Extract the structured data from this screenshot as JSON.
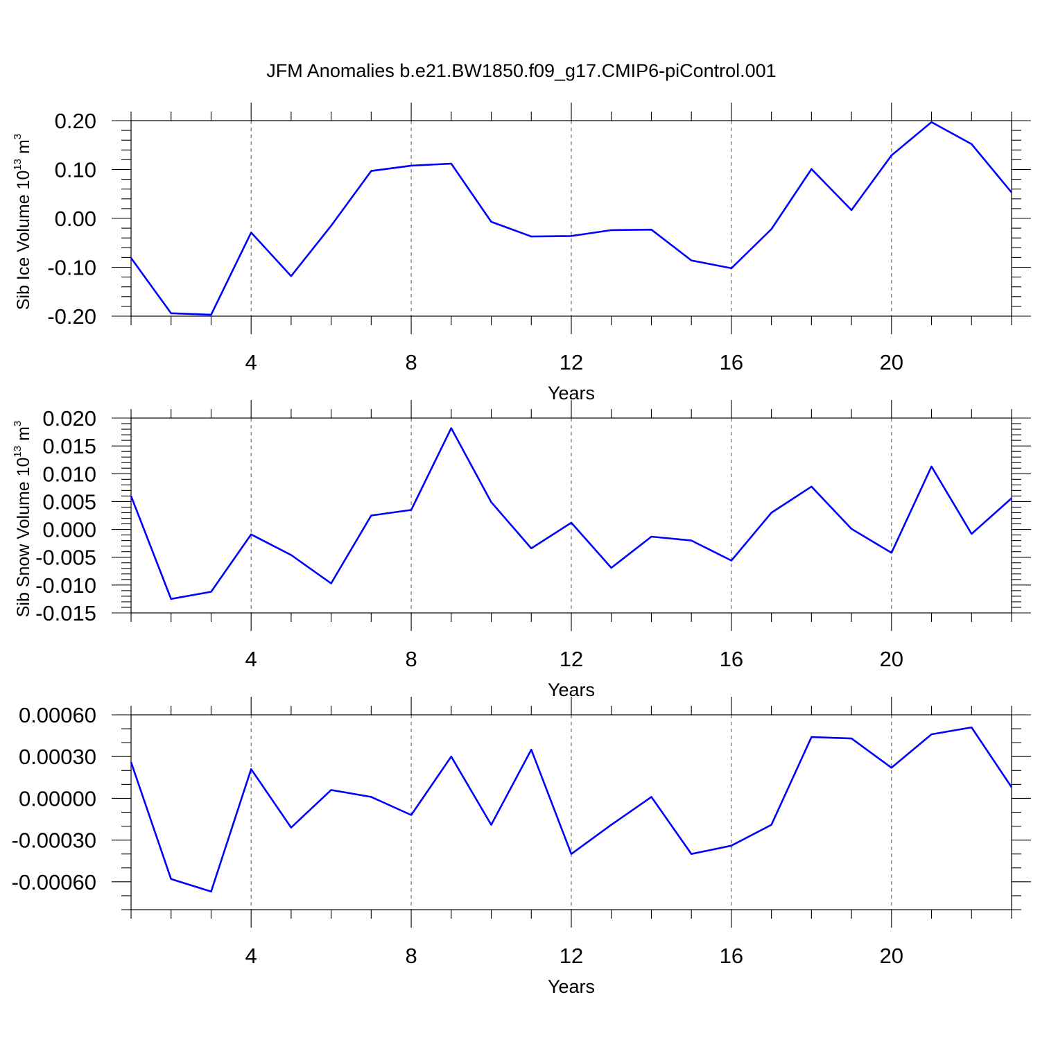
{
  "chart_data": [
    {
      "type": "line",
      "title": "JFM Anomalies b.e21.BW1850.f09_g17.CMIP6-piControl.001",
      "xlabel": "Years",
      "ylabel": "Sib Ice Volume 10",
      "ylabel_exp": "13",
      "ylabel_unit": " m",
      "ylabel_unit_exp": "3",
      "xlim": [
        1,
        23
      ],
      "ylim": [
        -0.2,
        0.2
      ],
      "xticks": [
        4,
        8,
        12,
        16,
        20
      ],
      "xtick_labels": [
        "4",
        "8",
        "12",
        "16",
        "20"
      ],
      "yticks": [
        -0.2,
        -0.1,
        0.0,
        0.1,
        0.2
      ],
      "ytick_labels": [
        "-0.20",
        "-0.10",
        "0.00",
        "0.10",
        "0.20"
      ],
      "y_minor_step": 0.02,
      "grid": "vertical dashed at major x ticks",
      "color": "#0000ff",
      "x": [
        1,
        2,
        3,
        4,
        5,
        6,
        7,
        8,
        9,
        10,
        11,
        12,
        13,
        14,
        15,
        16,
        17,
        18,
        19,
        20,
        21,
        22,
        23
      ],
      "values": [
        -0.081,
        -0.194,
        -0.197,
        -0.029,
        -0.118,
        -0.015,
        0.097,
        0.108,
        0.112,
        -0.007,
        -0.037,
        -0.036,
        -0.024,
        -0.023,
        -0.086,
        -0.102,
        -0.022,
        0.101,
        0.017,
        0.129,
        0.197,
        0.152,
        0.053
      ]
    },
    {
      "type": "line",
      "xlabel": "Years",
      "ylabel": "Sib Snow Volume 10",
      "ylabel_exp": "13",
      "ylabel_unit": " m",
      "ylabel_unit_exp": "3",
      "xlim": [
        1,
        23
      ],
      "ylim": [
        -0.015,
        0.02
      ],
      "xticks": [
        4,
        8,
        12,
        16,
        20
      ],
      "xtick_labels": [
        "4",
        "8",
        "12",
        "16",
        "20"
      ],
      "yticks": [
        -0.015,
        -0.01,
        -0.005,
        0.0,
        0.005,
        0.01,
        0.015,
        0.02
      ],
      "ytick_labels": [
        "-0.015",
        "-0.010",
        "-0.005",
        "0.000",
        "0.005",
        "0.010",
        "0.015",
        "0.020"
      ],
      "y_minor_step": 0.001,
      "grid": "vertical dashed at major x ticks",
      "color": "#0000ff",
      "x": [
        1,
        2,
        3,
        4,
        5,
        6,
        7,
        8,
        9,
        10,
        11,
        12,
        13,
        14,
        15,
        16,
        17,
        18,
        19,
        20,
        21,
        22,
        23
      ],
      "values": [
        0.006,
        -0.0125,
        -0.0112,
        -0.0009,
        -0.0046,
        -0.0097,
        0.0025,
        0.0035,
        0.0182,
        0.0049,
        -0.0034,
        0.0012,
        -0.0069,
        -0.0013,
        -0.002,
        -0.0056,
        0.003,
        0.0077,
        0.0001,
        -0.0042,
        0.0113,
        -0.0008,
        0.0056
      ]
    },
    {
      "type": "line",
      "xlabel": "Years",
      "ylabel": "",
      "xlim": [
        1,
        23
      ],
      "ylim": [
        -0.0008,
        0.0006
      ],
      "xticks": [
        4,
        8,
        12,
        16,
        20
      ],
      "xtick_labels": [
        "4",
        "8",
        "12",
        "16",
        "20"
      ],
      "yticks": [
        -0.0006,
        -0.0003,
        0.0,
        0.0003,
        0.0006
      ],
      "ytick_labels": [
        "-0.00060",
        "-0.00030",
        "0.00000",
        "0.00030",
        "0.00060"
      ],
      "y_minor_step": 0.0001,
      "grid": "vertical dashed at major x ticks",
      "color": "#0000ff",
      "x": [
        1,
        2,
        3,
        4,
        5,
        6,
        7,
        8,
        9,
        10,
        11,
        12,
        13,
        14,
        15,
        16,
        17,
        18,
        19,
        20,
        21,
        22,
        23
      ],
      "values": [
        0.00026,
        -0.00058,
        -0.00067,
        0.00021,
        -0.00021,
        6e-05,
        1e-05,
        -0.00012,
        0.0003,
        -0.00019,
        0.00035,
        -0.0004,
        -0.00019,
        1e-05,
        -0.0004,
        -0.00034,
        -0.00019,
        0.00044,
        0.00043,
        0.00022,
        0.00046,
        0.00051,
        8e-05
      ]
    }
  ]
}
